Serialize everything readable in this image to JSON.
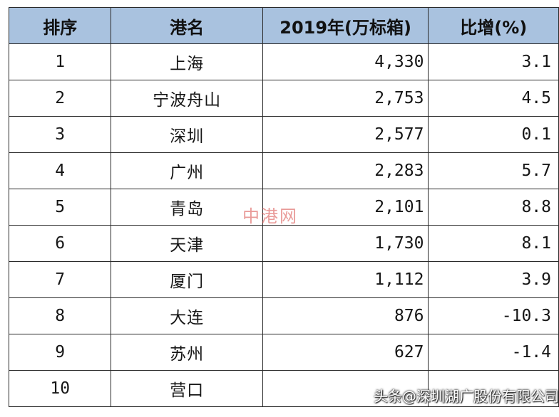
{
  "table": {
    "headers": {
      "rank": "排序",
      "port": "港名",
      "teu": "2019年(万标箱)",
      "growth": "比增(%)"
    },
    "rows": [
      {
        "rank": "1",
        "port": "上海",
        "teu": "4,330",
        "growth": "3.1"
      },
      {
        "rank": "2",
        "port": "宁波舟山",
        "teu": "2,753",
        "growth": "4.5"
      },
      {
        "rank": "3",
        "port": "深圳",
        "teu": "2,577",
        "growth": "0.1"
      },
      {
        "rank": "4",
        "port": "广州",
        "teu": "2,283",
        "growth": "5.7"
      },
      {
        "rank": "5",
        "port": "青岛",
        "teu": "2,101",
        "growth": "8.8"
      },
      {
        "rank": "6",
        "port": "天津",
        "teu": "1,730",
        "growth": "8.1"
      },
      {
        "rank": "7",
        "port": "厦门",
        "teu": "1,112",
        "growth": "3.9"
      },
      {
        "rank": "8",
        "port": "大连",
        "teu": "876",
        "growth": "-10.3"
      },
      {
        "rank": "9",
        "port": "苏州",
        "teu": "627",
        "growth": "-1.4"
      },
      {
        "rank": "10",
        "port": "营口",
        "teu": "",
        "growth": ""
      }
    ]
  },
  "watermark": "中港网",
  "source_badge": "头条@深圳湖广股份有限公司",
  "colors": {
    "header_background": "#a9c2df",
    "border": "#2a2a2a",
    "watermark": "#d84b47"
  }
}
